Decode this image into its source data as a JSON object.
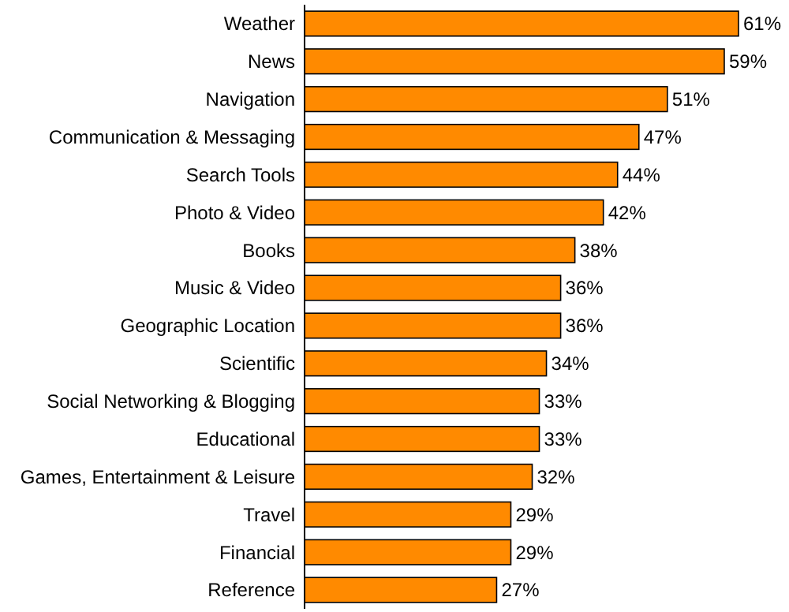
{
  "chart_data": {
    "type": "bar",
    "orientation": "horizontal",
    "categories": [
      "Weather",
      "News",
      "Navigation",
      "Communication & Messaging",
      "Search Tools",
      "Photo & Video",
      "Books",
      "Music & Video",
      "Geographic Location",
      "Scientific",
      "Social Networking & Blogging",
      "Educational",
      "Games, Entertainment & Leisure",
      "Travel",
      "Financial",
      "Reference"
    ],
    "values": [
      61,
      59,
      51,
      47,
      44,
      42,
      38,
      36,
      36,
      34,
      33,
      33,
      32,
      29,
      29,
      27
    ],
    "value_labels": [
      "61%",
      "59%",
      "51%",
      "47%",
      "44%",
      "42%",
      "38%",
      "36%",
      "36%",
      "34%",
      "33%",
      "33%",
      "32%",
      "29%",
      "29%",
      "27%"
    ],
    "color": "#ff8a00"
  }
}
